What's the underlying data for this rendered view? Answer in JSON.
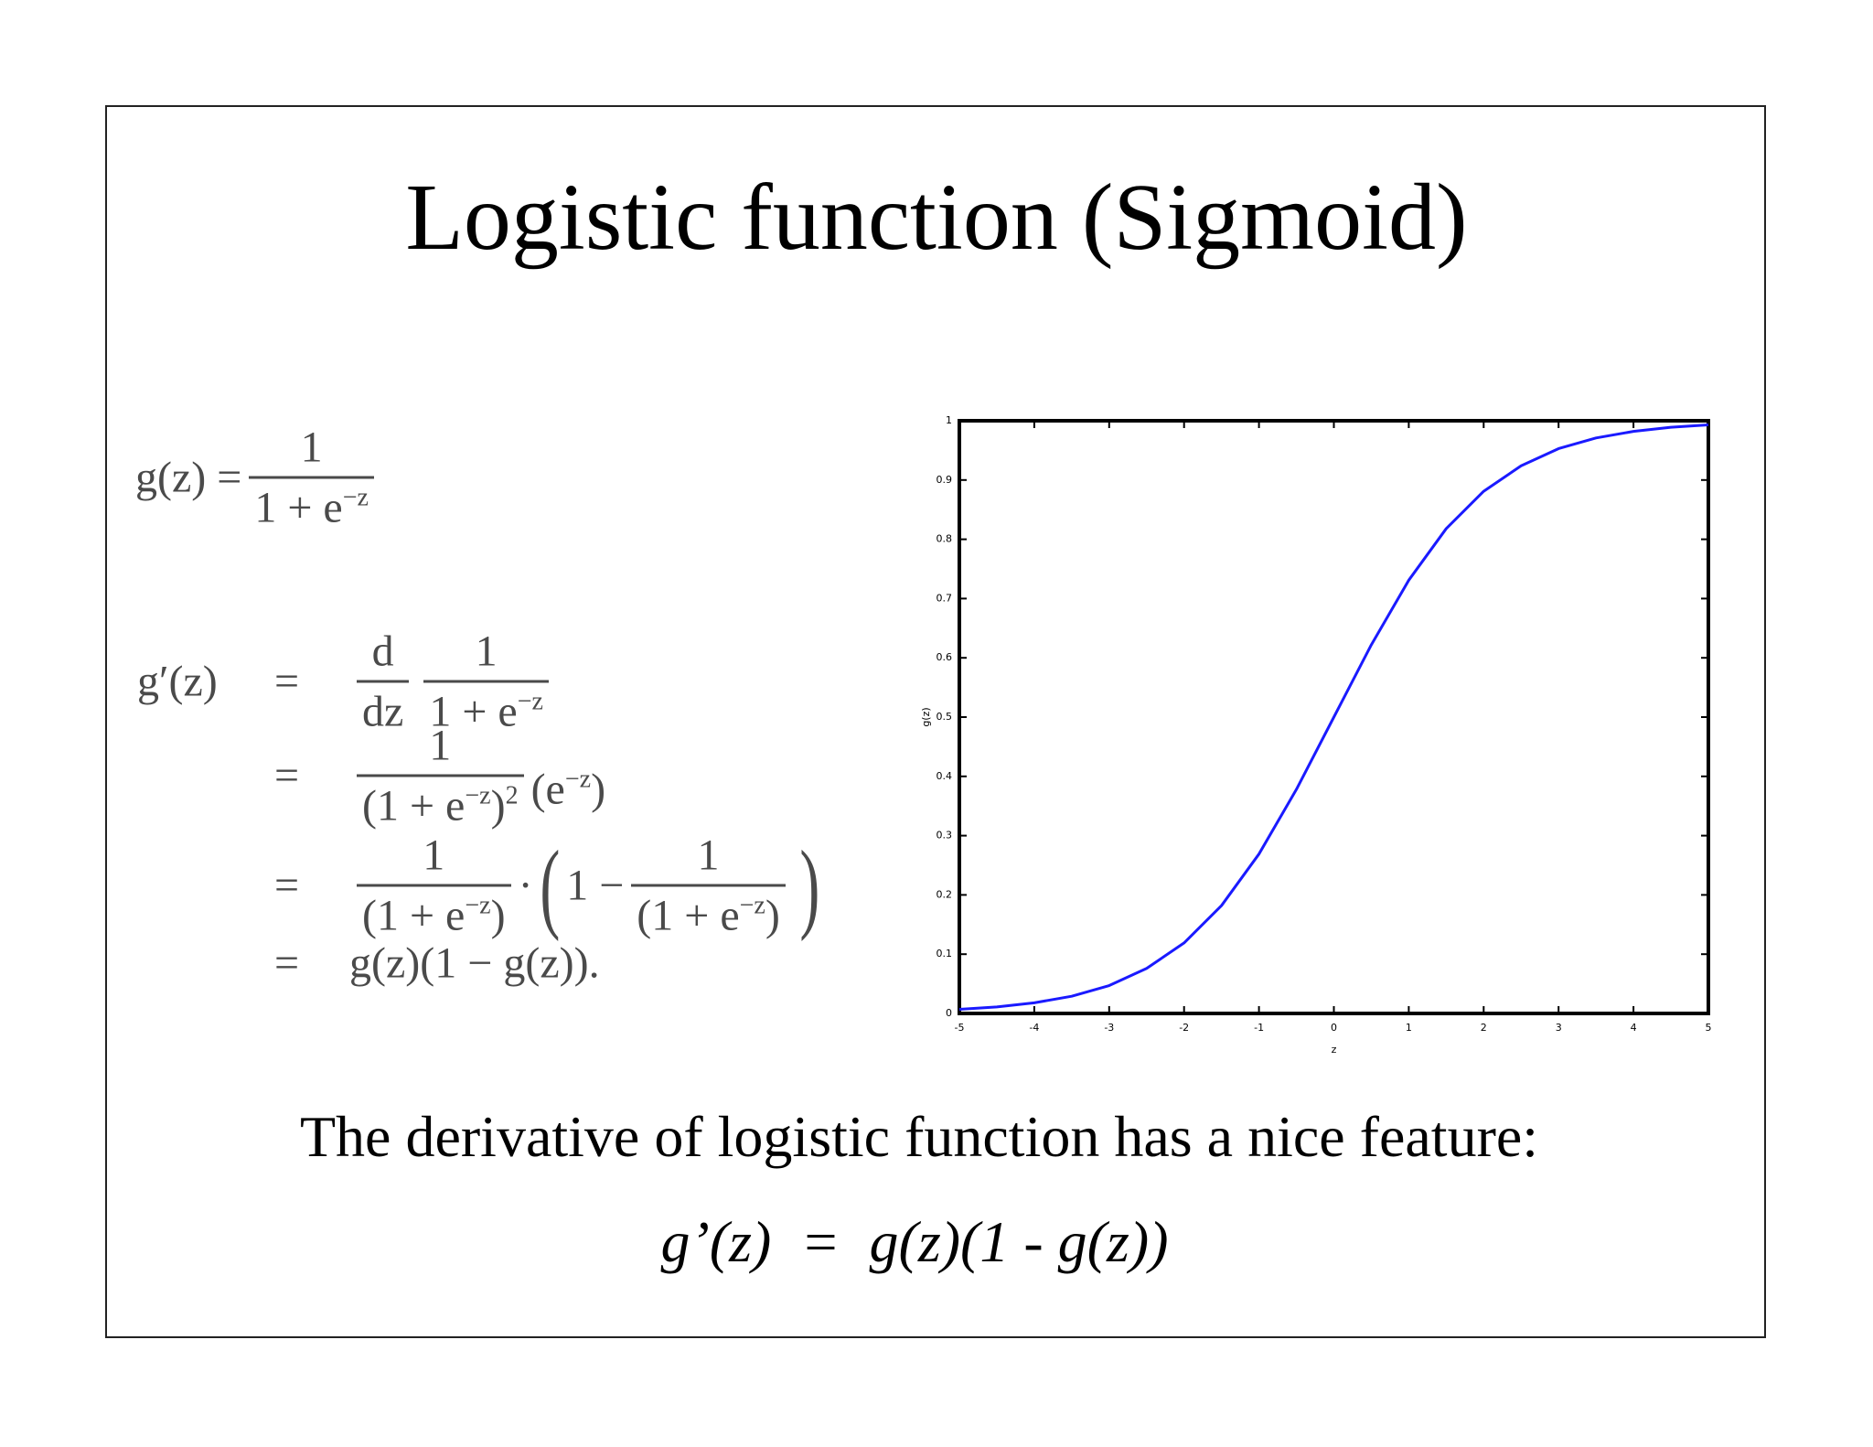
{
  "slide": {
    "title": "Logistic function (Sigmoid)",
    "definition": {
      "lhs": "g(z) =",
      "num": "1",
      "den": "1 + e",
      "den_sup": "−z"
    },
    "derivation": {
      "lhs": "g′(z)",
      "lines": [
        {
          "eq": "=",
          "f1_num": "d",
          "f1_den": "dz",
          "f2_num": "1",
          "f2_den": "1 + e",
          "f2_sup": "−z"
        },
        {
          "eq": "=",
          "num": "1",
          "den": "(1 + e",
          "den_sup": "−z",
          "den_close": ")",
          "den_pow": "2",
          "tail": "(e",
          "tail_sup": "−z",
          "tail_close": ")"
        },
        {
          "eq": "=",
          "num": "1",
          "den": "(1 + e",
          "den_sup": "−z",
          "den_close": ")",
          "dot": "·",
          "open": "(",
          "one": "1 −",
          "num2": "1",
          "den2": "(1 + e",
          "den2_sup": "−z",
          "den2_close": ")",
          "close": ")"
        },
        {
          "eq": "=",
          "expr": "g(z)(1 − g(z))."
        }
      ]
    },
    "caption": "The derivative of logistic function has a nice feature:",
    "formula": "g’(z)  =  g(z)(1 - g(z))"
  },
  "chart_data": {
    "type": "line",
    "x_label": "z",
    "y_label": "g(z)",
    "x": [
      -5,
      -4.5,
      -4,
      -3.5,
      -3,
      -2.5,
      -2,
      -1.5,
      -1,
      -0.5,
      0,
      0.5,
      1,
      1.5,
      2,
      2.5,
      3,
      3.5,
      4,
      4.5,
      5
    ],
    "series": [
      {
        "name": "g(z)",
        "color": "#1a1aff",
        "values": [
          0.007,
          0.011,
          0.018,
          0.029,
          0.047,
          0.076,
          0.119,
          0.182,
          0.269,
          0.378,
          0.5,
          0.622,
          0.731,
          0.818,
          0.881,
          0.924,
          0.953,
          0.971,
          0.982,
          0.989,
          0.993
        ]
      }
    ],
    "xlim": [
      -5,
      5
    ],
    "ylim": [
      0,
      1
    ],
    "xticks": [
      -5,
      -4,
      -3,
      -2,
      -1,
      0,
      1,
      2,
      3,
      4,
      5
    ],
    "yticks": [
      0,
      0.1,
      0.2,
      0.3,
      0.4,
      0.5,
      0.6,
      0.7,
      0.8,
      0.9,
      1
    ],
    "grid": false
  }
}
